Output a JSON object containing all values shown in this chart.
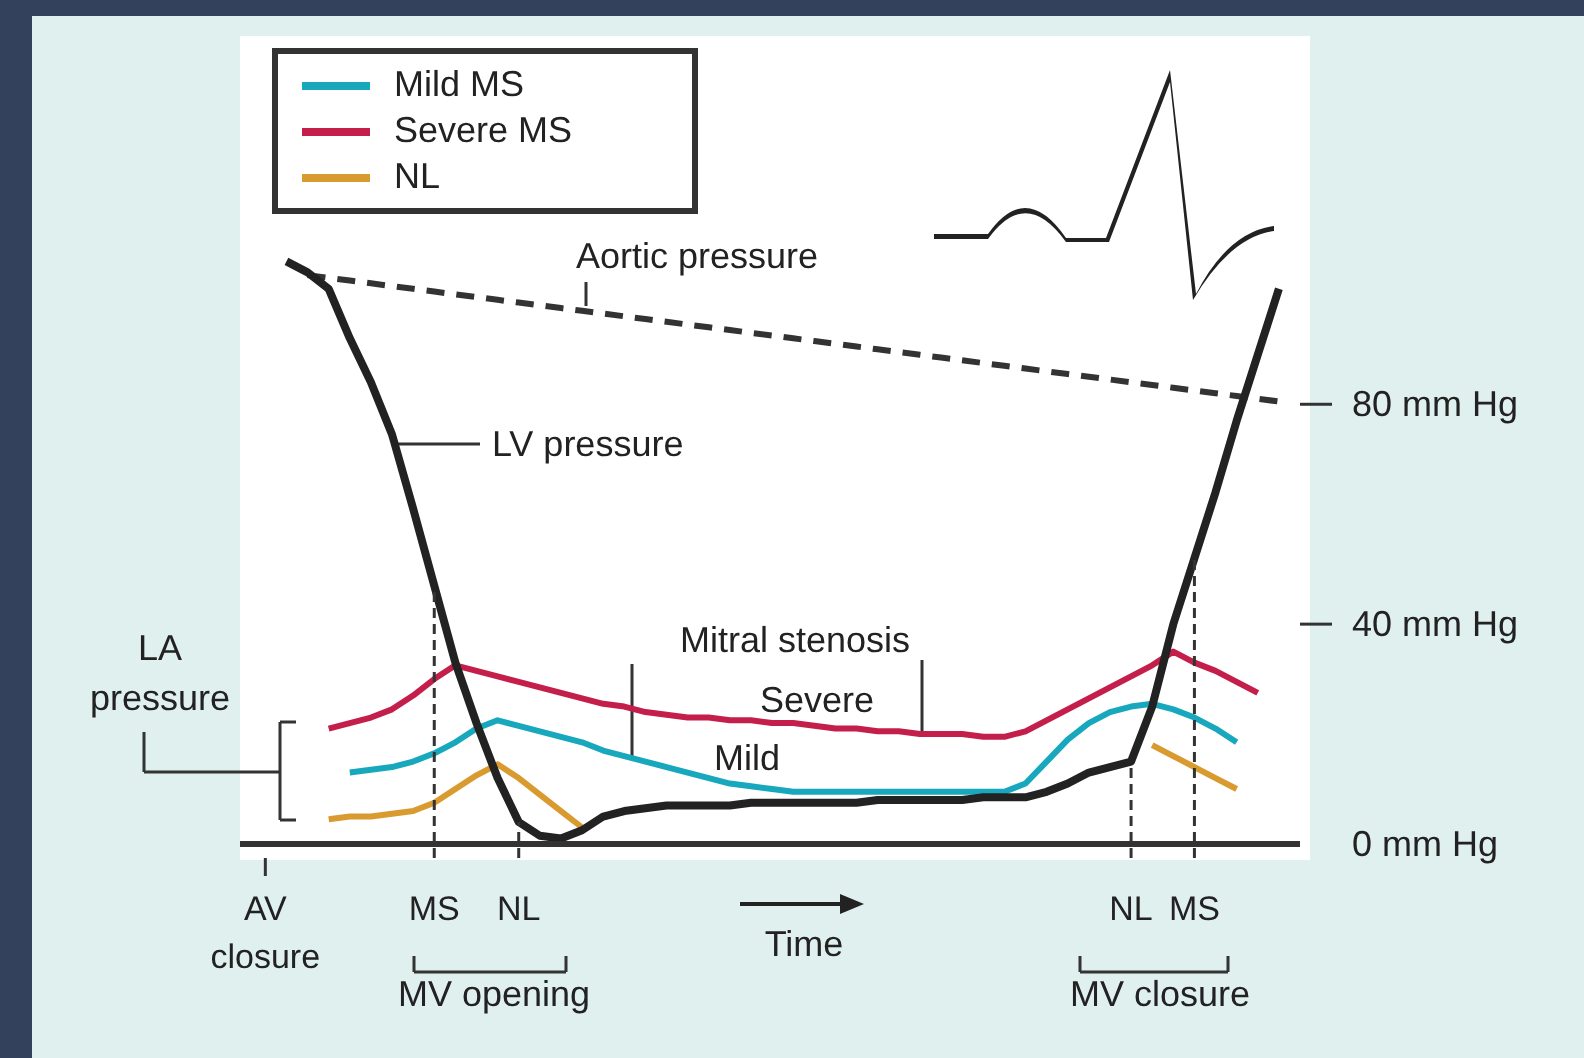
{
  "chart_data": {
    "type": "line",
    "categories": [
      "AV closure",
      null,
      null,
      null,
      null,
      null,
      null,
      null,
      "MS",
      null,
      null,
      null,
      "NL",
      null,
      null,
      null,
      null,
      null,
      null,
      null,
      null,
      null,
      null,
      null,
      null,
      null,
      null,
      null,
      null,
      null,
      null,
      null,
      null,
      null,
      null,
      null,
      null,
      null,
      null,
      null,
      null,
      "NL",
      null,
      null,
      "MS",
      null,
      null,
      null,
      null
    ],
    "series": [
      {
        "name": "Mild MS",
        "color": "#17a8bd",
        "values": [
          null,
          null,
          null,
          null,
          13,
          13.5,
          14,
          15,
          16.5,
          18.5,
          21,
          22.5,
          21.5,
          20.5,
          19.5,
          18.5,
          17,
          16,
          15,
          14,
          13,
          12,
          11,
          10.5,
          10,
          9.5,
          9.5,
          9.5,
          9.5,
          9.5,
          9.5,
          9.5,
          9.5,
          9.5,
          9.5,
          9.5,
          11,
          15,
          19,
          22,
          24,
          25,
          25.5,
          24.5,
          23,
          21,
          18.5,
          null,
          null
        ]
      },
      {
        "name": "Severe MS",
        "color": "#c41f4b",
        "values": [
          null,
          null,
          null,
          21,
          22,
          23,
          24.5,
          27,
          30,
          32.5,
          31.5,
          30.5,
          29.5,
          28.5,
          27.5,
          26.5,
          25.5,
          25,
          24,
          23.5,
          23,
          23,
          22.5,
          22.5,
          22,
          22,
          21.5,
          21,
          21,
          20.5,
          20.5,
          20,
          20,
          20,
          19.5,
          19.5,
          20.5,
          22.5,
          24.5,
          26.5,
          28.5,
          30.5,
          32.5,
          35,
          33,
          31.5,
          29.5,
          27.5,
          null
        ]
      },
      {
        "name": "NL",
        "color": "#d99a2f",
        "values": [
          null,
          null,
          null,
          4.5,
          5,
          5,
          5.5,
          6,
          7.5,
          10,
          12.5,
          14.5,
          12,
          9,
          6,
          3,
          null,
          null,
          null,
          null,
          null,
          null,
          null,
          null,
          null,
          null,
          null,
          null,
          null,
          null,
          null,
          null,
          null,
          null,
          null,
          null,
          null,
          null,
          null,
          null,
          null,
          null,
          18,
          16,
          14,
          12,
          10,
          null,
          null
        ]
      },
      {
        "color": "#333333",
        "line_style": "dashed",
        "values": [
          null,
          null,
          103.5,
          103,
          102.5,
          102,
          101.5,
          101,
          100.5,
          100,
          99.5,
          99,
          98.5,
          98,
          97.5,
          97,
          96.5,
          96,
          95.5,
          95,
          94.5,
          94,
          93.5,
          93,
          92.5,
          92,
          91.5,
          91,
          90.5,
          90,
          89.5,
          89,
          88.5,
          88,
          87.5,
          87,
          86.5,
          86,
          85.5,
          85,
          84.5,
          84,
          83.5,
          83,
          82.5,
          82,
          81.5,
          81,
          80.5
        ]
      },
      {
        "color": "#222222",
        "values": [
          null,
          106,
          104,
          101,
          92,
          84,
          74.5,
          61,
          47,
          33,
          22,
          12,
          4,
          1.5,
          1,
          2.5,
          5,
          6,
          6.5,
          7,
          7,
          7,
          7,
          7.5,
          7.5,
          7.5,
          7.5,
          7.5,
          7.5,
          8,
          8,
          8,
          8,
          8,
          8.5,
          8.5,
          8.5,
          9.5,
          11,
          13,
          14,
          15,
          25,
          40,
          52,
          64,
          77,
          89,
          101
        ]
      }
    ],
    "ylim": [
      0,
      147
    ],
    "yticks": [
      {
        "value": 0,
        "label": "0 mm Hg"
      },
      {
        "value": 40,
        "label": "40 mm Hg"
      },
      {
        "value": 80,
        "label": "80 mm Hg"
      }
    ],
    "legend": "top left",
    "marker": "none",
    "grid": false,
    "annotations": [
      "Aortic pressure",
      "LV pressure",
      {
        "text": "Mitral stenosis",
        "y": 20
      },
      "Severe",
      "Mild",
      "LA pressure",
      "Time",
      "MV opening",
      "MV closure"
    ]
  }
}
